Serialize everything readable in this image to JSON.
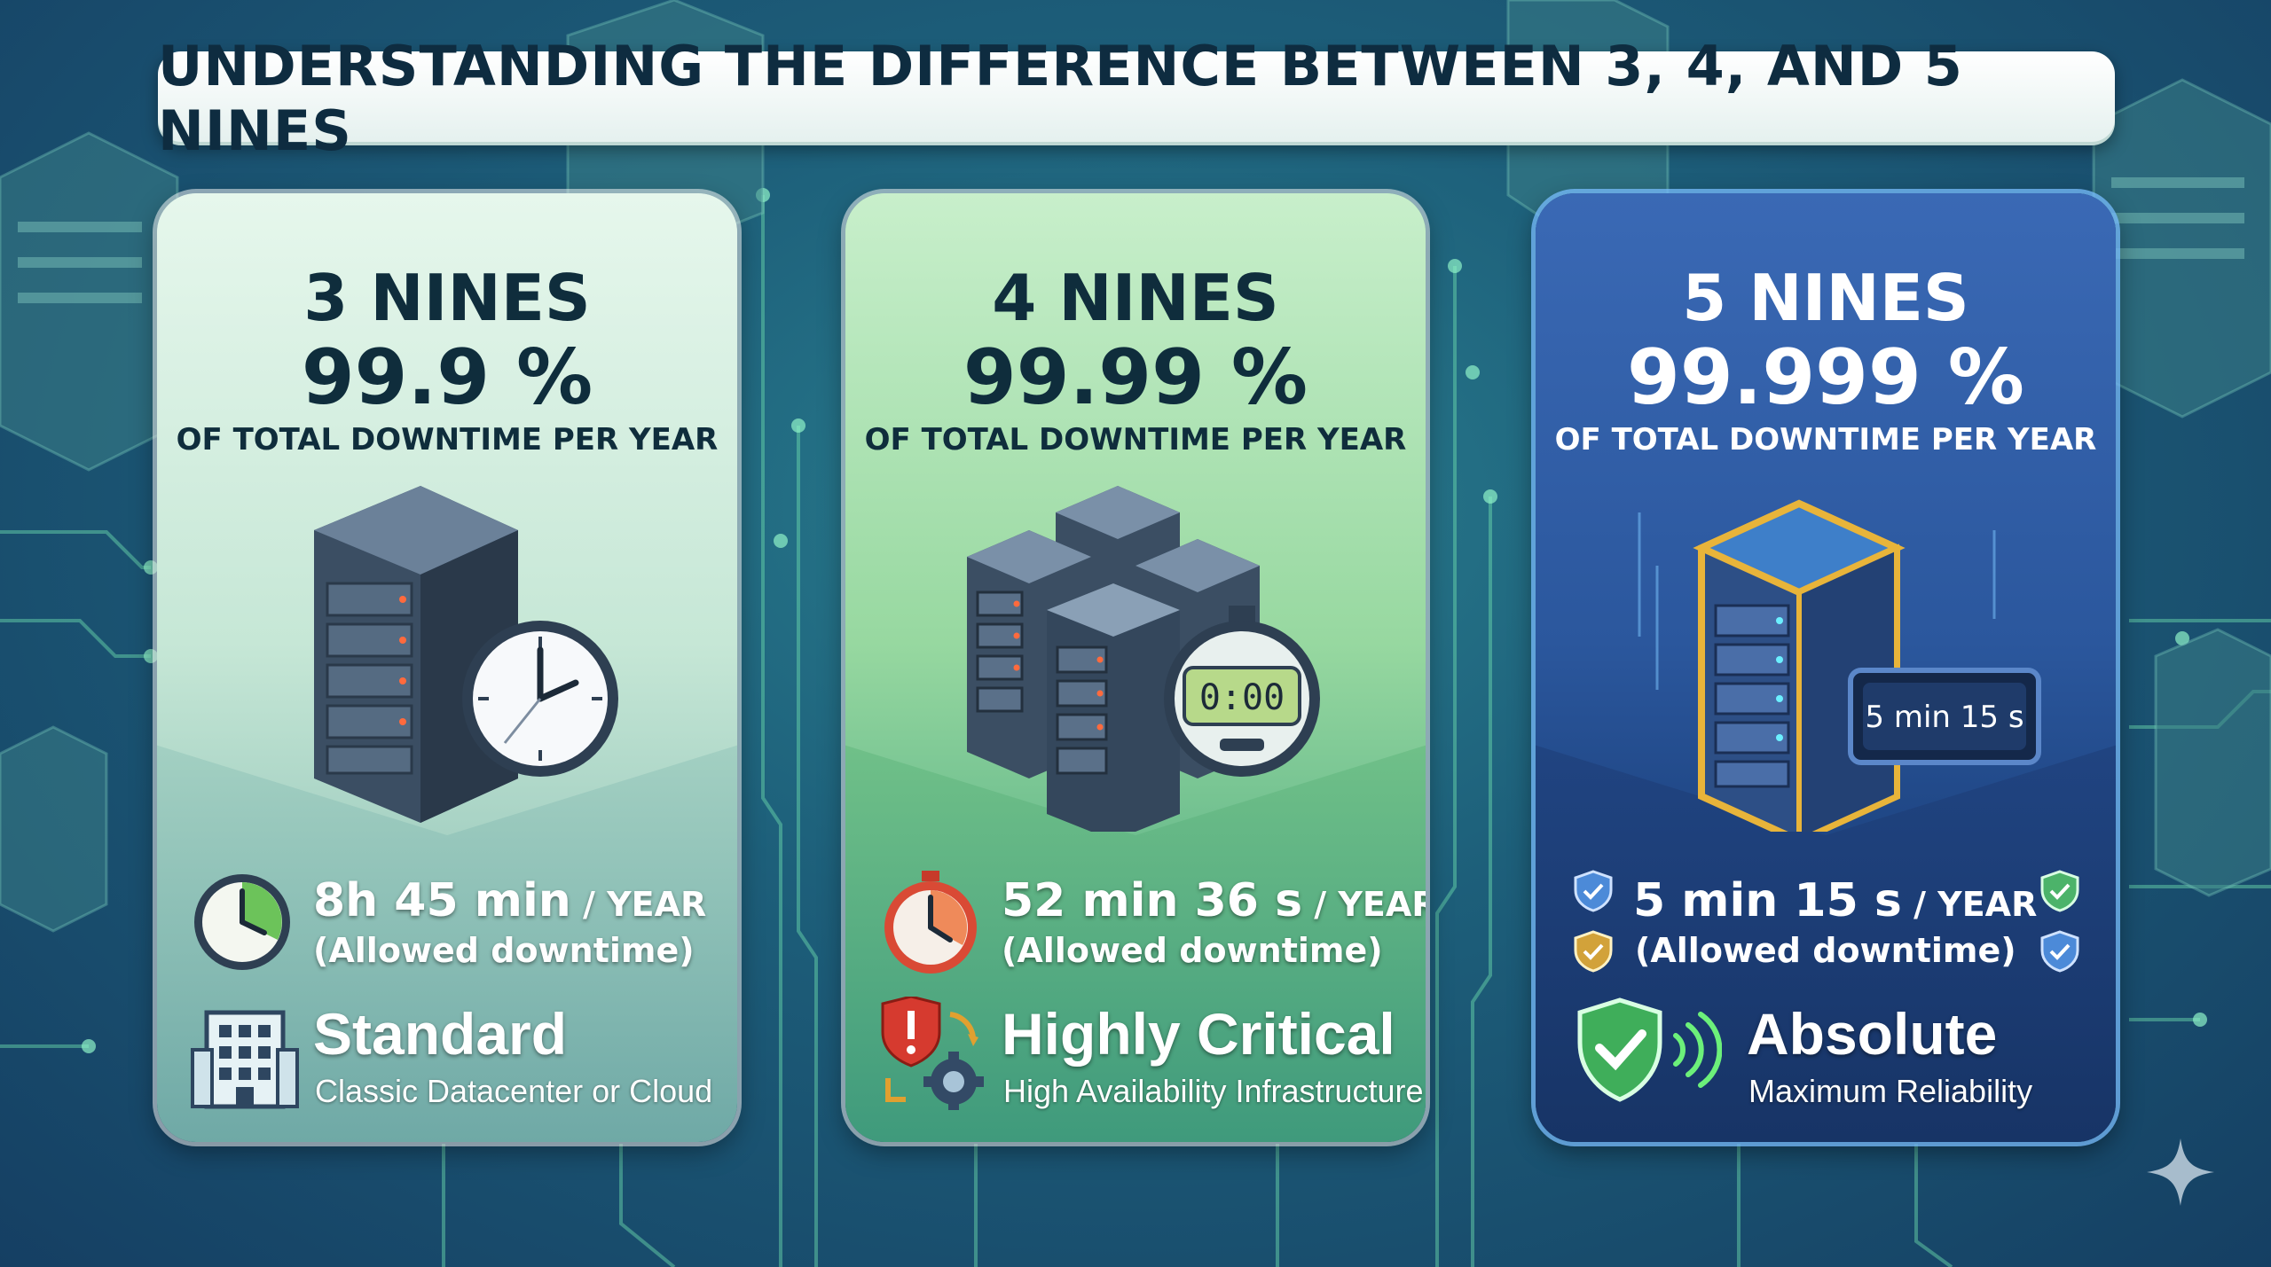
{
  "title": "UNDERSTANDING THE DIFFERENCE BETWEEN 3, 4, AND 5 NINES",
  "cards": [
    {
      "nines": "3 NINES",
      "percent": "99.9 %",
      "subtitle": "OF TOTAL DOWNTIME PER YEAR",
      "illustration": "server-with-clock-icon",
      "downtime_value": "8h 45 min",
      "downtime_unit": " / YEAR",
      "downtime_note": "(Allowed downtime)",
      "downtime_icon": "clock-icon",
      "tier_name": "Standard",
      "tier_desc": "Classic Datacenter or Cloud",
      "tier_icon": "building-icon",
      "accent": "#b3dccb"
    },
    {
      "nines": "4 NINES",
      "percent": "99.99 %",
      "subtitle": "OF TOTAL DOWNTIME PER YEAR",
      "illustration": "server-cluster-with-stopwatch-icon",
      "stopwatch_display": "0:00",
      "downtime_value": "52 min 36 s",
      "downtime_unit": " / YEAR",
      "downtime_note": "(Allowed downtime)",
      "downtime_icon": "stopwatch-icon",
      "tier_name": "Highly Critical",
      "tier_desc": "High Availability Infrastructure",
      "tier_icon": "alert-shield-gear-icon",
      "accent": "#7fcc8c"
    },
    {
      "nines": "5 NINES",
      "percent": "99.999 %",
      "subtitle": "OF TOTAL DOWNTIME PER YEAR",
      "illustration": "gold-server-with-display-icon",
      "display_text": "5 min 15 s",
      "downtime_value": "5 min 15 s",
      "downtime_unit": " / YEAR",
      "downtime_note": "(Allowed downtime)",
      "downtime_icon": "small-shield-icons",
      "tier_name": "Absolute",
      "tier_desc": "Maximum Reliability",
      "tier_icon": "check-shield-icon",
      "accent": "#23498a"
    }
  ],
  "colors": {
    "background": "#1d5f7a",
    "title_text": "#0e2c40",
    "card3_border": "#78beff"
  }
}
